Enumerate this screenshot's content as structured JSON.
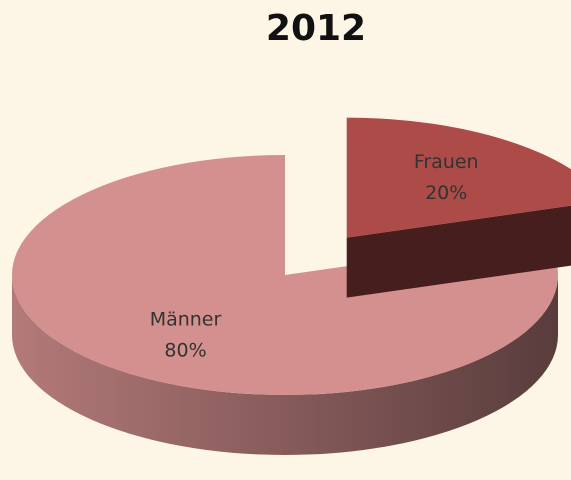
{
  "chart_data": {
    "type": "pie",
    "title": "2012",
    "categories": [
      "Frauen",
      "Männer"
    ],
    "values": [
      20,
      80
    ],
    "value_labels": [
      "20%",
      "80%"
    ],
    "colors": [
      "#ad4b49",
      "#d3908e"
    ]
  }
}
